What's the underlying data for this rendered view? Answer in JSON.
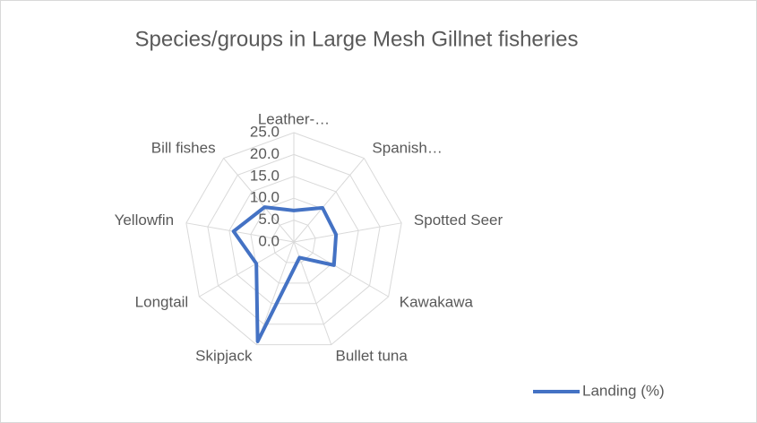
{
  "chart_data": {
    "type": "radar",
    "title": "Species/groups in Large Mesh Gillnet fisheries",
    "categories": [
      "Leather-…",
      "Spanish…",
      "Spotted Seer",
      "Kawakawa",
      "Bullet tuna",
      "Skipjack",
      "Longtail",
      "Yellowfin",
      "Bill fishes"
    ],
    "series": [
      {
        "name": "Landing (%)",
        "color": "#4472c4",
        "values": [
          7.2,
          10.2,
          9.8,
          10.6,
          3.8,
          24.2,
          9.9,
          14.0,
          10.4
        ]
      }
    ],
    "ylim": [
      0,
      25
    ],
    "yticks": [
      {
        "value": 0,
        "label": "0.0"
      },
      {
        "value": 5,
        "label": "5.0"
      },
      {
        "value": 10,
        "label": "10.0"
      },
      {
        "value": 15,
        "label": "15.0"
      },
      {
        "value": 20,
        "label": "20.0"
      },
      {
        "value": 25,
        "label": "25.0"
      }
    ],
    "grid": true,
    "legend": "bottom-right"
  }
}
